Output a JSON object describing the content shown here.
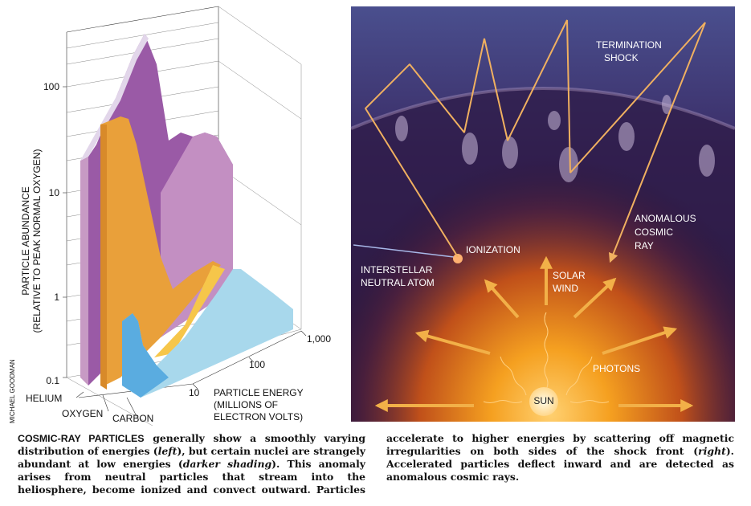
{
  "left_panel": {
    "y_axis_title": [
      "PARTICLE ABUNDANCE",
      "(RELATIVE TO PEAK NORMAL OXYGEN)"
    ],
    "y_ticks": [
      "100",
      "10",
      "1",
      "0.1"
    ],
    "species": [
      "HELIUM",
      "OXYGEN",
      "CARBON"
    ],
    "energy_ticks": [
      "10",
      "100",
      "1,000"
    ],
    "energy_axis_title": [
      "PARTICLE ENERGY",
      "(MILLIONS OF",
      "ELECTRON VOLTS)"
    ],
    "credit": "MICHAEL GOODMAN"
  },
  "right_panel": {
    "termination_shock": [
      "TERMINATION",
      "SHOCK"
    ],
    "anomalous_cosmic_ray": [
      "ANOMALOUS",
      "COSMIC",
      "RAY"
    ],
    "ionization": "IONIZATION",
    "interstellar_neutral_atom": [
      "INTERSTELLAR",
      "NEUTRAL ATOM"
    ],
    "solar_wind": [
      "SOLAR",
      "WIND"
    ],
    "photons": "PHOTONS",
    "sun": "SUN"
  },
  "caption": {
    "lead": "COSMIC-RAY PARTICLES",
    "parts": [
      " generally show a smoothly varying distribution of energies (",
      "left",
      "), but certain nuclei are strangely abundant at low energies (",
      "darker shading",
      "). This anomaly arises from neutral particles that stream into the heliosphere, become ionized and convect outward. Particles accelerate to higher energies by scattering off magnetic irregularities on both sides of the shock front (",
      "right",
      "). Accelerated particles deflect inward and are detected as anomalous cosmic rays."
    ]
  }
}
